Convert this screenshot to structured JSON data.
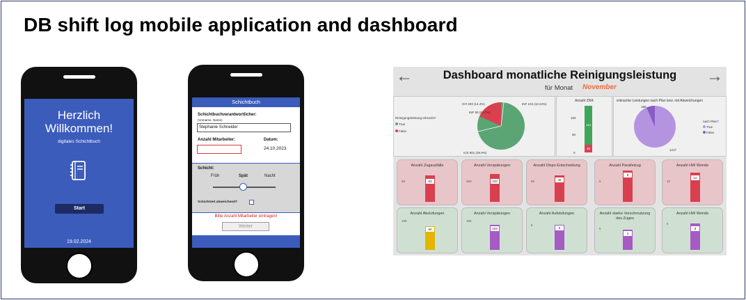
{
  "page_title": "DB shift log mobile application and dashboard",
  "welcome_screen": {
    "title": "Herzlich Willkommen!",
    "subtitle": "digitales Schichtbuch",
    "icon": "notebook-icon",
    "start_label": "Start",
    "date": "19.02.2024"
  },
  "form_screen": {
    "header": "Schichtbuch",
    "responsible_label": "Schichtbuchverantwortlicher:",
    "responsible_hint": "(Vorname, Name)",
    "responsible_value": "Stephanie Schneider",
    "staff_label": "Anzahl Mitarbeiter:",
    "staff_value": "",
    "date_label": "Datum:",
    "date_value": "24.10.2023",
    "shift_label": "Schicht:",
    "shift_options": [
      "Früh",
      "Spät",
      "Nacht"
    ],
    "shift_selected": "Spät",
    "deviation_label": "Schichtzeit abweichend?",
    "error_text": "Bitte Anzahl Mitarbeiter eintragen!",
    "next_label": "Weiter"
  },
  "dashboard": {
    "title": "Dashboard monatliche Reinigungsleistung",
    "month_label": "für Monat",
    "month_value": "November",
    "pie1": {
      "legend_title": "Reinigungsleistung erbracht?",
      "legend": [
        "True",
        "False"
      ],
      "labels": [
        "IC# 203 (14.4%)",
        "INF 104 (10.24%)",
        "INF 80 (0.27%)",
        "ICE 801 (28.9%)"
      ]
    },
    "zra": {
      "title": "Anzahl ZRA",
      "axis": [
        "100",
        "50",
        "0"
      ],
      "values": [
        "114",
        "20"
      ]
    },
    "pie2": {
      "title": "erbrachte Leistungen nach Plan bzw. mit Abweichungen",
      "legend_title": "nach Plan?",
      "legend": [
        "True",
        "False"
      ],
      "labels": [
        "180",
        "1217"
      ]
    },
    "cards_top": [
      {
        "label": "Anzahl Zugausfälle",
        "axis_top": "50",
        "value": "63"
      },
      {
        "label": "Anzahl Verspätungen",
        "axis_top": "200",
        "value": "233"
      },
      {
        "label": "Anzahl Dispo Entscheidung",
        "axis_top": "50",
        "value": "46"
      },
      {
        "label": "Anzahl Parallelzug",
        "axis_top": "5",
        "value": "8"
      },
      {
        "label": "Anzahl HW Wende",
        "axis_top": "10",
        "value": "12"
      }
    ],
    "cards_bottom": [
      {
        "label": "Anzahl Abstufungen",
        "axis_top": "100",
        "value": "94"
      },
      {
        "label": "Anzahl Verspätungen",
        "axis_top": "100",
        "value": "103"
      },
      {
        "label": "Anzahl Aufstufungen",
        "axis_top": "5",
        "value": "5"
      },
      {
        "label": "Anzahl starke Verschmutzung des Zuges",
        "axis_top": "5",
        "value": "4"
      },
      {
        "label": "Anzahl HW Wende",
        "axis_top": "5",
        "value": "8"
      }
    ],
    "colors": {
      "pie1_true": "#5aa573",
      "pie1_false": "#d9404f",
      "zra_green": "#3fa55a",
      "zra_red": "#d9404f",
      "pie2_main": "#b494e0",
      "pie2_small": "#8a5bc4",
      "bar_red": "#d9404f",
      "bar_yellow": "#e3b400",
      "bar_purple": "#a65ac4"
    }
  }
}
